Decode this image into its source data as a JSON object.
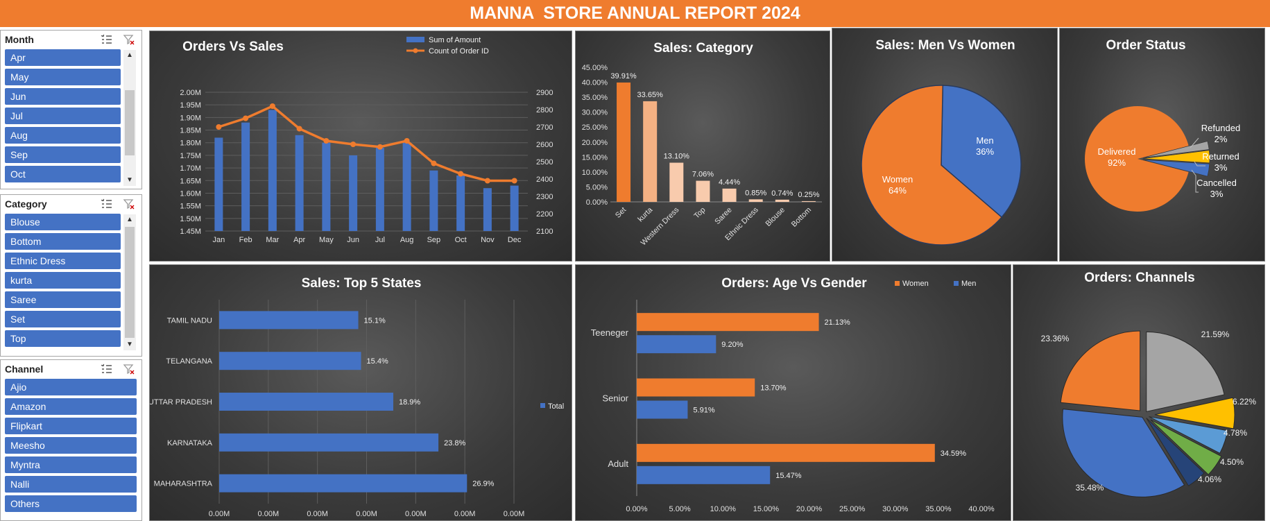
{
  "title": "MANNA  STORE ANNUAL REPORT 2024",
  "colors": {
    "orange": "#ef7c2e",
    "blue": "#4472c4",
    "gray": "#a5a5a5",
    "yellow": "#ffc000",
    "lightblue": "#5b9bd5",
    "green": "#70ad47",
    "navy": "#264478",
    "peach": "#f4b183",
    "peach2": "#f8cbad"
  },
  "slicers": [
    {
      "title": "Month",
      "items": [
        "Apr",
        "May",
        "Jun",
        "Jul",
        "Aug",
        "Sep",
        "Oct"
      ]
    },
    {
      "title": "Category",
      "items": [
        "Blouse",
        "Bottom",
        "Ethnic Dress",
        "kurta",
        "Saree",
        "Set",
        "Top"
      ]
    },
    {
      "title": "Channel",
      "items": [
        "Ajio",
        "Amazon",
        "Flipkart",
        "Meesho",
        "Myntra",
        "Nalli",
        "Others"
      ]
    }
  ],
  "chart_data": [
    {
      "id": "orders_vs_sales",
      "type": "bar+line",
      "title": "Orders Vs Sales",
      "categories": [
        "Jan",
        "Feb",
        "Mar",
        "Apr",
        "May",
        "Jun",
        "Jul",
        "Aug",
        "Sep",
        "Oct",
        "Nov",
        "Dec"
      ],
      "series": [
        {
          "name": "Sum of Amount",
          "type": "bar",
          "axis": "left",
          "values": [
            1.82,
            1.88,
            1.93,
            1.83,
            1.8,
            1.75,
            1.78,
            1.8,
            1.69,
            1.67,
            1.62,
            1.63
          ]
        },
        {
          "name": "Count of Order ID",
          "type": "line",
          "axis": "right",
          "values": [
            2700,
            2750,
            2820,
            2690,
            2620,
            2600,
            2585,
            2620,
            2490,
            2430,
            2390,
            2390
          ]
        }
      ],
      "yticks_left": [
        "1.45M",
        "1.50M",
        "1.55M",
        "1.60M",
        "1.65M",
        "1.70M",
        "1.75M",
        "1.80M",
        "1.85M",
        "1.90M",
        "1.95M",
        "2.00M"
      ],
      "ylim_left": [
        1.45,
        2.0
      ],
      "yticks_right": [
        "2100",
        "2200",
        "2300",
        "2400",
        "2500",
        "2600",
        "2700",
        "2800",
        "2900"
      ],
      "ylim_right": [
        2100,
        2900
      ]
    },
    {
      "id": "sales_category",
      "type": "bar",
      "title": "Sales: Category",
      "categories": [
        "Set",
        "kurta",
        "Western Dress",
        "Top",
        "Saree",
        "Ethnic Dress",
        "Blouse",
        "Bottom"
      ],
      "values": [
        39.91,
        33.65,
        13.1,
        7.06,
        4.44,
        0.85,
        0.74,
        0.25
      ],
      "labels": [
        "39.91%",
        "33.65%",
        "13.10%",
        "7.06%",
        "4.44%",
        "0.85%",
        "0.74%",
        "0.25%"
      ],
      "yticks": [
        "0.00%",
        "5.00%",
        "10.00%",
        "15.00%",
        "20.00%",
        "25.00%",
        "30.00%",
        "35.00%",
        "40.00%",
        "45.00%"
      ],
      "ylim": [
        0,
        45
      ]
    },
    {
      "id": "men_vs_women",
      "type": "pie",
      "title": "Sales: Men Vs Women",
      "slices": [
        {
          "name": "Men",
          "value": 36,
          "label": "36%"
        },
        {
          "name": "Women",
          "value": 64,
          "label": "64%"
        }
      ]
    },
    {
      "id": "order_status",
      "type": "pie",
      "title": "Order Status",
      "slices": [
        {
          "name": "Delivered",
          "value": 92,
          "label": "92%"
        },
        {
          "name": "Cancelled",
          "value": 3,
          "label": "3%"
        },
        {
          "name": "Returned",
          "value": 3,
          "label": "3%"
        },
        {
          "name": "Refunded",
          "value": 2,
          "label": "2%"
        }
      ]
    },
    {
      "id": "top5_states",
      "type": "bar",
      "orientation": "horizontal",
      "title": "Sales: Top 5 States",
      "categories": [
        "TAMIL NADU",
        "TELANGANA",
        "UTTAR PRADESH",
        "KARNATAKA",
        "MAHARASHTRA"
      ],
      "values": [
        15.1,
        15.4,
        18.9,
        23.8,
        26.9
      ],
      "labels": [
        "15.1%",
        "15.4%",
        "18.9%",
        "23.8%",
        "26.9%"
      ],
      "xticks": [
        "0.00M",
        "0.00M",
        "0.00M",
        "0.00M",
        "0.00M",
        "0.00M",
        "0.00M"
      ],
      "legend": "Total"
    },
    {
      "id": "age_vs_gender",
      "type": "bar",
      "orientation": "horizontal",
      "title": "Orders: Age Vs Gender",
      "categories": [
        "Teeneger",
        "Senior",
        "Adult"
      ],
      "series": [
        {
          "name": "Women",
          "values": [
            21.13,
            13.7,
            34.59
          ],
          "labels": [
            "21.13%",
            "13.70%",
            "34.59%"
          ]
        },
        {
          "name": "Men",
          "values": [
            9.2,
            5.91,
            15.47
          ],
          "labels": [
            "9.20%",
            "5.91%",
            "15.47%"
          ]
        }
      ],
      "xticks": [
        "0.00%",
        "5.00%",
        "10.00%",
        "15.00%",
        "20.00%",
        "25.00%",
        "30.00%",
        "35.00%",
        "40.00%"
      ],
      "xlim": [
        0,
        40
      ]
    },
    {
      "id": "channels",
      "type": "pie",
      "title": "Orders: Channels",
      "slices": [
        {
          "value": 21.59,
          "label": "21.59%"
        },
        {
          "value": 6.22,
          "label": "6.22%"
        },
        {
          "value": 4.78,
          "label": "4.78%"
        },
        {
          "value": 4.5,
          "label": "4.50%"
        },
        {
          "value": 4.06,
          "label": "4.06%"
        },
        {
          "value": 35.48,
          "label": "35.48%"
        },
        {
          "value": 23.36,
          "label": "23.36%"
        }
      ]
    }
  ]
}
